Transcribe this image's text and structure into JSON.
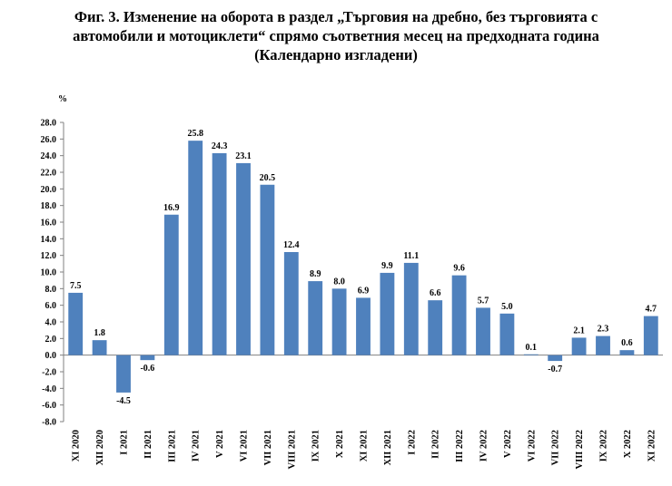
{
  "figure": {
    "title_lines": [
      "Фиг. 3. Изменение на оборота в раздел „Търговия на дребно, без търговията с",
      "автомобили и мотоциклети“ спрямо съответния месец на предходната година",
      "(Календарно изгладени)"
    ]
  },
  "chart_data": {
    "type": "bar",
    "title": "Фиг. 3. Изменение на оборота в раздел „Търговия на дребно, без търговията с автомобили и мотоциклети“ спрямо съответния месец на предходната година (Календарно изгладени)",
    "ylabel": "%",
    "xlabel": "",
    "ylim": [
      -8.0,
      28.0
    ],
    "ytick_step": 2.0,
    "grid": false,
    "bar_color": "#4f81bd",
    "categories": [
      "XI 2020",
      "XII 2020",
      "I 2021",
      "II 2021",
      "III 2021",
      "IV 2021",
      "V 2021",
      "VI 2021",
      "VII 2021",
      "VIII 2021",
      "IX 2021",
      "X 2021",
      "XI 2021",
      "XII 2021",
      "I 2022",
      "II 2022",
      "III 2022",
      "IV 2022",
      "V 2022",
      "VI 2022",
      "VII 2022",
      "VIII 2022",
      "IX 2022",
      "X 2022",
      "XI 2022"
    ],
    "values": [
      7.5,
      1.8,
      -4.5,
      -0.6,
      16.9,
      25.8,
      24.3,
      23.1,
      20.5,
      12.4,
      8.9,
      8.0,
      6.9,
      9.9,
      11.1,
      6.6,
      9.6,
      5.7,
      5.0,
      0.1,
      -0.7,
      2.1,
      2.3,
      0.6,
      4.7
    ]
  }
}
